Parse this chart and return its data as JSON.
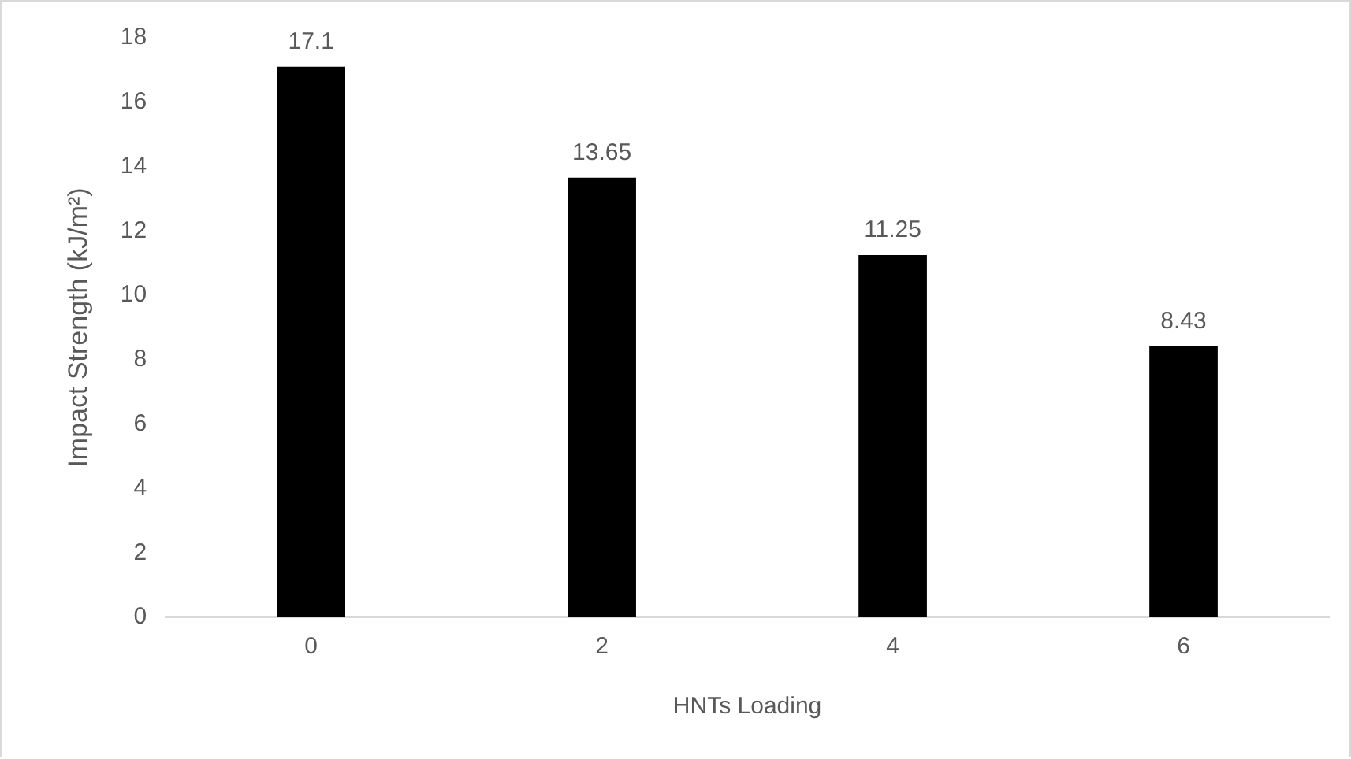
{
  "chart_data": {
    "type": "bar",
    "xlabel": "HNTs Loading",
    "ylabel": "Impact Strength (kJ/m²)",
    "categories": [
      "0",
      "2",
      "4",
      "6"
    ],
    "values": [
      17.1,
      13.65,
      11.25,
      8.43
    ],
    "color": "#000000",
    "ylim": [
      0,
      18
    ],
    "yticks": [
      0,
      2,
      4,
      6,
      8,
      10,
      12,
      14,
      16,
      18
    ],
    "grid": false,
    "data_labels": true
  }
}
